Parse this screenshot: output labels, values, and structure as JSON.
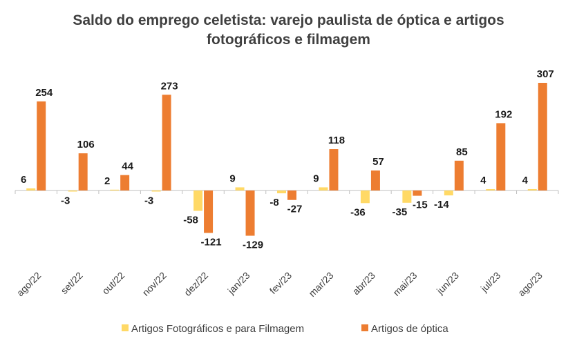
{
  "chart_data": {
    "type": "bar",
    "title_line1": "Saldo do emprego celetista: varejo paulista de óptica e artigos",
    "title_line2": "fotográficos e filmagem",
    "categories": [
      "ago/22",
      "set/22",
      "out/22",
      "nov/22",
      "dez/22",
      "jan/23",
      "fev/23",
      "mar/23",
      "abr/23",
      "mai/23",
      "jun/23",
      "jul/23",
      "ago/23"
    ],
    "series": [
      {
        "name": "Artigos Fotográficos e para Filmagem",
        "color": "#FFD966",
        "values": [
          6,
          -3,
          2,
          -3,
          -58,
          9,
          -8,
          9,
          -36,
          -35,
          -14,
          4,
          4
        ]
      },
      {
        "name": "Artigos de óptica",
        "color": "#ED7D31",
        "values": [
          254,
          106,
          44,
          273,
          -121,
          -129,
          -27,
          118,
          57,
          -15,
          85,
          192,
          307
        ]
      }
    ],
    "ylim": [
      -150,
      350
    ],
    "grid": false,
    "legend_position": "bottom"
  }
}
